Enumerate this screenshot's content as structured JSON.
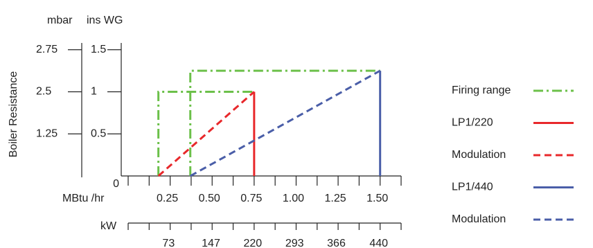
{
  "chart_data": {
    "type": "line",
    "ylabel": "Boiler Resistance",
    "ylabel_left_unit": "mbar",
    "ylabel_unit": "ins WG",
    "xlabel": "MBtu /hr",
    "x2label": "kW",
    "ylim": [
      0,
      1.5
    ],
    "yticks": [
      0,
      0.5,
      1,
      1.5
    ],
    "mbar_ticks": [
      1.25,
      2.5,
      2.75
    ],
    "xlim": [
      0,
      1.625
    ],
    "xticks": [
      0.25,
      {
        "value": 0.5,
        "label": "0.50"
      },
      0.75,
      {
        "value": 1,
        "label": "1.00"
      },
      1.25,
      {
        "value": 1.5,
        "label": "1.50"
      }
    ],
    "xminor": [
      0,
      0.125,
      0.25,
      0.375,
      0.5,
      0.625,
      0.75,
      0.875,
      1,
      1.125,
      1.25,
      1.375,
      1.5,
      1.625
    ],
    "x2lim": [
      0,
      476.7
    ],
    "x2ticks": [
      73,
      147,
      220,
      293,
      366,
      440
    ],
    "series": [
      {
        "name": "Firing range",
        "color": "#6cc04a",
        "dash": "dashdot",
        "x": [
          0.18,
          0.18,
          0.75,
          null,
          0.37,
          0.37,
          1.5
        ],
        "values": [
          0,
          1,
          1,
          null,
          0,
          1.25,
          1.25
        ]
      },
      {
        "name": "LP1/220",
        "color": "#e8282b",
        "dash": "solid",
        "x": [
          0.75,
          0.75
        ],
        "values": [
          1,
          0
        ]
      },
      {
        "name": "Modulation",
        "color": "#e8282b",
        "dash": "dashed",
        "x": [
          0.18,
          0.75
        ],
        "values": [
          0,
          1
        ]
      },
      {
        "name": "LP1/440",
        "color": "#4a5ea8",
        "dash": "solid",
        "x": [
          1.5,
          1.5
        ],
        "values": [
          1.25,
          0
        ]
      },
      {
        "name": "Modulation",
        "color": "#4a5ea8",
        "dash": "dashed",
        "x": [
          0.37,
          1.5
        ],
        "values": [
          0,
          1.25
        ]
      }
    ]
  }
}
